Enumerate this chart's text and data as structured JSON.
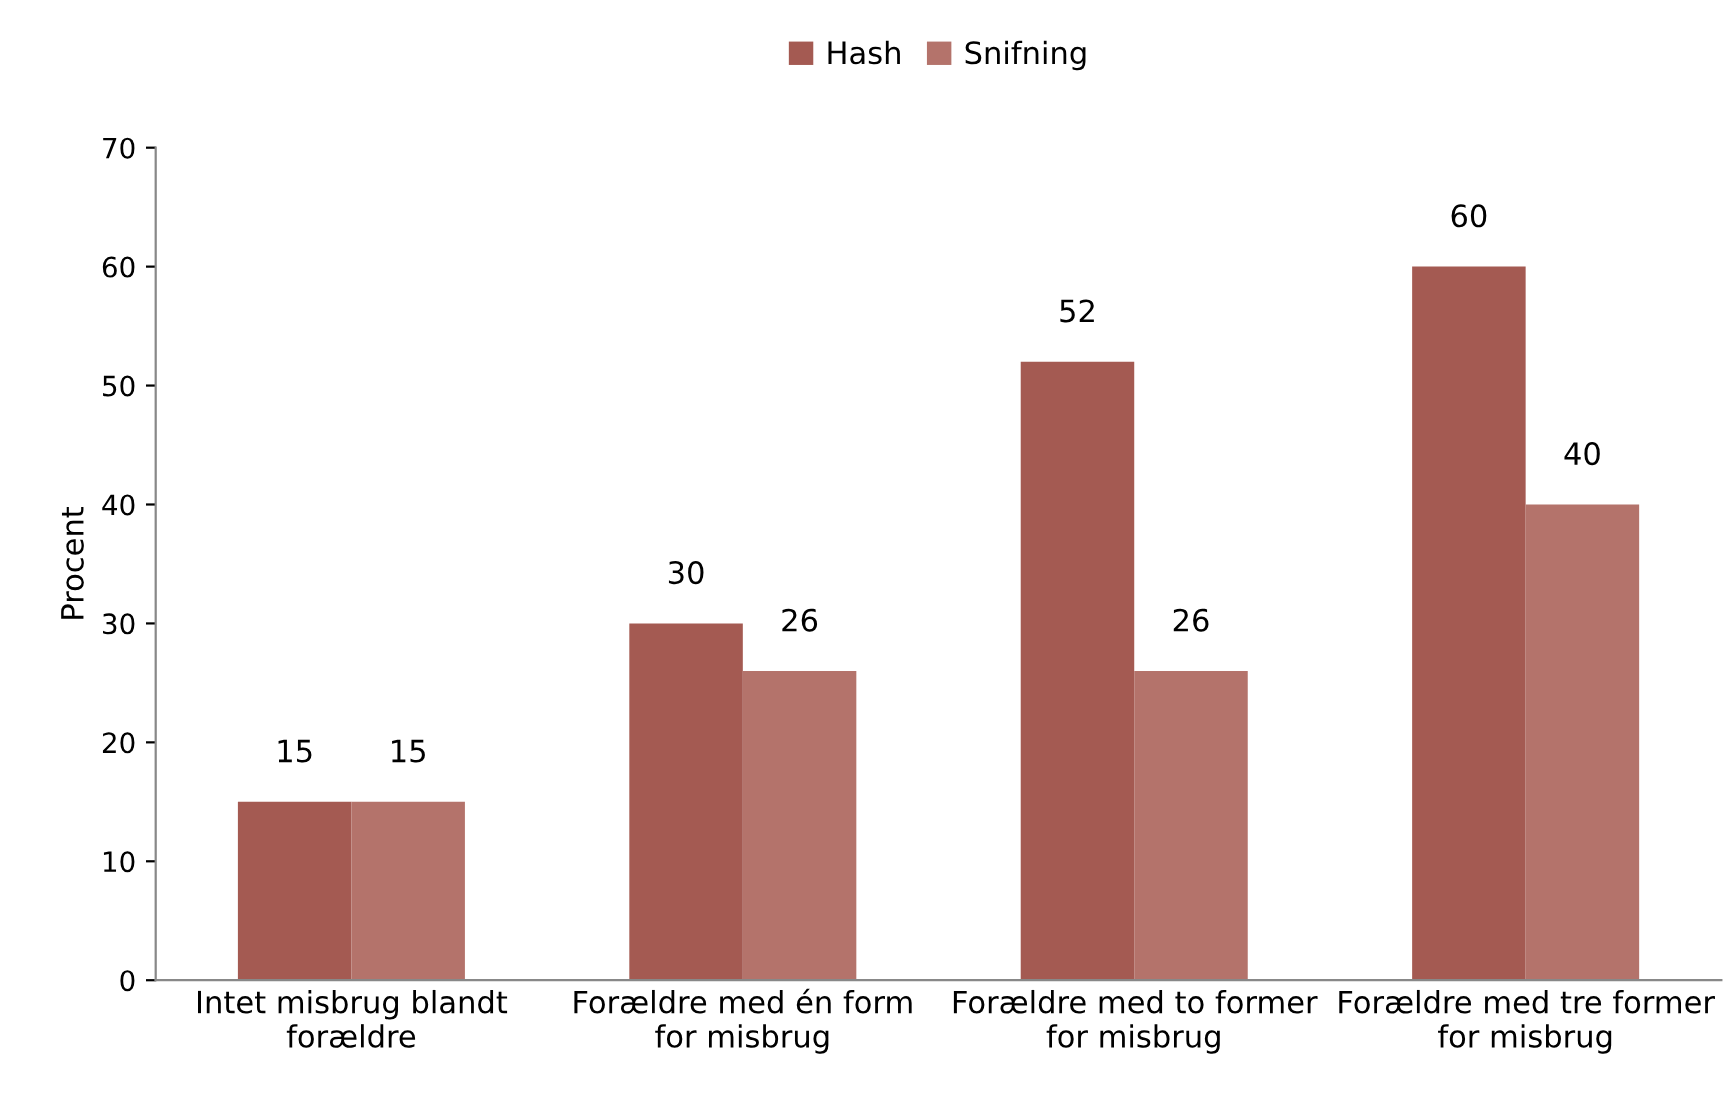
{
  "chart_data": {
    "type": "bar",
    "ylabel": "Procent",
    "categories": [
      "Intet misbrug blandt\nforældre",
      "Forældre med én form\nfor misbrug",
      "Forældre med to former\nfor misbrug",
      "Forældre med tre former\nfor misbrug"
    ],
    "series": [
      {
        "name": "Hash",
        "color": "#a45a52",
        "values": [
          15,
          30,
          52,
          60
        ]
      },
      {
        "name": "Snifning",
        "color": "#b4736b",
        "values": [
          15,
          26,
          26,
          40
        ]
      }
    ],
    "ylim": [
      0,
      70
    ],
    "yticks": [
      0,
      10,
      20,
      30,
      40,
      50,
      60,
      70
    ],
    "data_labels": true,
    "grid": false,
    "legend": "top"
  }
}
